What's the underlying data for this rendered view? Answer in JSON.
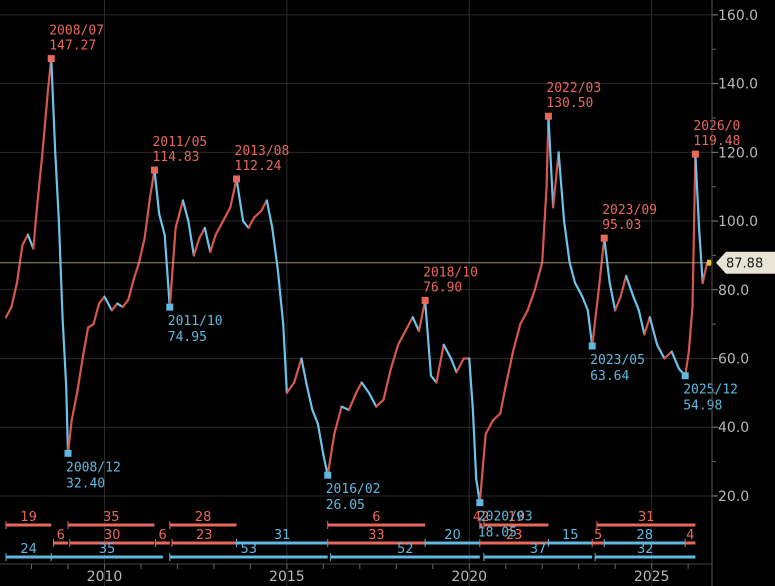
{
  "chart_data": {
    "type": "line",
    "ylim": [
      13,
      162
    ],
    "y_ticks": [
      "20.0",
      "40.0",
      "60.0",
      "80.0",
      "100.0",
      "120.0",
      "140.0",
      "160.0"
    ],
    "x_ticks": [
      {
        "label": "2010",
        "x": 2010.0
      },
      {
        "label": "2015",
        "x": 2015.0
      },
      {
        "label": "2020",
        "x": 2020.0
      },
      {
        "label": "2025",
        "x": 2025.0
      }
    ],
    "xlim": [
      2007.3,
      2026.6
    ],
    "series": [
      {
        "values": [
          {
            "x": 2007.3,
            "y": 72
          },
          {
            "x": 2007.45,
            "y": 75
          },
          {
            "x": 2007.6,
            "y": 82
          },
          {
            "x": 2007.75,
            "y": 93
          },
          {
            "x": 2007.9,
            "y": 96
          },
          {
            "x": 2008.05,
            "y": 92
          },
          {
            "x": 2008.15,
            "y": 104
          },
          {
            "x": 2008.3,
            "y": 120
          },
          {
            "x": 2008.45,
            "y": 138
          },
          {
            "x": 2008.54,
            "y": 147.27
          },
          {
            "x": 2008.65,
            "y": 120
          },
          {
            "x": 2008.75,
            "y": 100
          },
          {
            "x": 2008.85,
            "y": 72
          },
          {
            "x": 2008.95,
            "y": 52
          },
          {
            "x": 2009.0,
            "y": 32.4
          },
          {
            "x": 2009.1,
            "y": 42
          },
          {
            "x": 2009.25,
            "y": 50
          },
          {
            "x": 2009.4,
            "y": 60
          },
          {
            "x": 2009.55,
            "y": 69
          },
          {
            "x": 2009.7,
            "y": 70
          },
          {
            "x": 2009.85,
            "y": 76
          },
          {
            "x": 2010.0,
            "y": 78
          },
          {
            "x": 2010.2,
            "y": 74
          },
          {
            "x": 2010.35,
            "y": 76
          },
          {
            "x": 2010.5,
            "y": 75
          },
          {
            "x": 2010.65,
            "y": 77
          },
          {
            "x": 2010.8,
            "y": 83
          },
          {
            "x": 2010.95,
            "y": 88
          },
          {
            "x": 2011.1,
            "y": 95
          },
          {
            "x": 2011.25,
            "y": 107
          },
          {
            "x": 2011.37,
            "y": 114.83
          },
          {
            "x": 2011.5,
            "y": 102
          },
          {
            "x": 2011.65,
            "y": 96
          },
          {
            "x": 2011.79,
            "y": 74.95
          },
          {
            "x": 2011.95,
            "y": 98
          },
          {
            "x": 2012.15,
            "y": 106
          },
          {
            "x": 2012.3,
            "y": 100
          },
          {
            "x": 2012.45,
            "y": 90
          },
          {
            "x": 2012.6,
            "y": 95
          },
          {
            "x": 2012.75,
            "y": 98
          },
          {
            "x": 2012.9,
            "y": 91
          },
          {
            "x": 2013.05,
            "y": 96
          },
          {
            "x": 2013.25,
            "y": 100
          },
          {
            "x": 2013.45,
            "y": 104
          },
          {
            "x": 2013.62,
            "y": 112.24
          },
          {
            "x": 2013.8,
            "y": 100
          },
          {
            "x": 2013.95,
            "y": 98
          },
          {
            "x": 2014.1,
            "y": 101
          },
          {
            "x": 2014.3,
            "y": 103
          },
          {
            "x": 2014.45,
            "y": 106
          },
          {
            "x": 2014.6,
            "y": 98
          },
          {
            "x": 2014.75,
            "y": 86
          },
          {
            "x": 2014.9,
            "y": 70
          },
          {
            "x": 2015.0,
            "y": 50
          },
          {
            "x": 2015.2,
            "y": 53
          },
          {
            "x": 2015.4,
            "y": 60
          },
          {
            "x": 2015.55,
            "y": 52
          },
          {
            "x": 2015.7,
            "y": 45
          },
          {
            "x": 2015.85,
            "y": 41
          },
          {
            "x": 2016.0,
            "y": 32
          },
          {
            "x": 2016.12,
            "y": 26.05
          },
          {
            "x": 2016.3,
            "y": 38
          },
          {
            "x": 2016.5,
            "y": 46
          },
          {
            "x": 2016.7,
            "y": 45
          },
          {
            "x": 2016.9,
            "y": 50
          },
          {
            "x": 2017.05,
            "y": 53
          },
          {
            "x": 2017.25,
            "y": 50
          },
          {
            "x": 2017.45,
            "y": 46
          },
          {
            "x": 2017.65,
            "y": 48
          },
          {
            "x": 2017.85,
            "y": 57
          },
          {
            "x": 2018.05,
            "y": 64
          },
          {
            "x": 2018.25,
            "y": 68
          },
          {
            "x": 2018.45,
            "y": 72
          },
          {
            "x": 2018.62,
            "y": 68
          },
          {
            "x": 2018.79,
            "y": 76.9
          },
          {
            "x": 2018.95,
            "y": 55
          },
          {
            "x": 2019.1,
            "y": 53
          },
          {
            "x": 2019.3,
            "y": 64
          },
          {
            "x": 2019.5,
            "y": 60
          },
          {
            "x": 2019.65,
            "y": 56
          },
          {
            "x": 2019.85,
            "y": 60
          },
          {
            "x": 2020.0,
            "y": 60
          },
          {
            "x": 2020.1,
            "y": 45
          },
          {
            "x": 2020.19,
            "y": 25
          },
          {
            "x": 2020.29,
            "y": 18.05
          },
          {
            "x": 2020.45,
            "y": 38
          },
          {
            "x": 2020.65,
            "y": 42
          },
          {
            "x": 2020.85,
            "y": 44
          },
          {
            "x": 2021.0,
            "y": 52
          },
          {
            "x": 2021.2,
            "y": 62
          },
          {
            "x": 2021.4,
            "y": 70
          },
          {
            "x": 2021.6,
            "y": 74
          },
          {
            "x": 2021.8,
            "y": 80
          },
          {
            "x": 2022.0,
            "y": 88
          },
          {
            "x": 2022.12,
            "y": 110
          },
          {
            "x": 2022.17,
            "y": 130.5
          },
          {
            "x": 2022.3,
            "y": 104
          },
          {
            "x": 2022.45,
            "y": 120
          },
          {
            "x": 2022.6,
            "y": 100
          },
          {
            "x": 2022.75,
            "y": 88
          },
          {
            "x": 2022.9,
            "y": 82
          },
          {
            "x": 2023.1,
            "y": 78
          },
          {
            "x": 2023.25,
            "y": 74
          },
          {
            "x": 2023.37,
            "y": 63.64
          },
          {
            "x": 2023.55,
            "y": 80
          },
          {
            "x": 2023.7,
            "y": 95.03
          },
          {
            "x": 2023.85,
            "y": 82
          },
          {
            "x": 2024.0,
            "y": 74
          },
          {
            "x": 2024.15,
            "y": 78
          },
          {
            "x": 2024.3,
            "y": 84
          },
          {
            "x": 2024.5,
            "y": 78
          },
          {
            "x": 2024.65,
            "y": 74
          },
          {
            "x": 2024.8,
            "y": 67
          },
          {
            "x": 2024.95,
            "y": 72
          },
          {
            "x": 2025.15,
            "y": 64
          },
          {
            "x": 2025.35,
            "y": 60
          },
          {
            "x": 2025.55,
            "y": 62
          },
          {
            "x": 2025.75,
            "y": 57
          },
          {
            "x": 2025.92,
            "y": 54.98
          },
          {
            "x": 2026.02,
            "y": 62
          },
          {
            "x": 2026.12,
            "y": 75
          },
          {
            "x": 2026.2,
            "y": 119.48
          },
          {
            "x": 2026.3,
            "y": 98
          },
          {
            "x": 2026.4,
            "y": 82
          },
          {
            "x": 2026.52,
            "y": 87.88
          }
        ]
      }
    ],
    "last_value": {
      "label": "87.88",
      "y": 87.88
    },
    "annotations": [
      {
        "kind": "high",
        "date": "2008/07",
        "value": "147.27",
        "x": 2008.54,
        "y": 147.27
      },
      {
        "kind": "low",
        "date": "2008/12",
        "value": "32.40",
        "x": 2009.0,
        "y": 32.4
      },
      {
        "kind": "high",
        "date": "2011/05",
        "value": "114.83",
        "x": 2011.37,
        "y": 114.83
      },
      {
        "kind": "low",
        "date": "2011/10",
        "value": "74.95",
        "x": 2011.79,
        "y": 74.95
      },
      {
        "kind": "high",
        "date": "2013/08",
        "value": "112.24",
        "x": 2013.62,
        "y": 112.24
      },
      {
        "kind": "low",
        "date": "2016/02",
        "value": "26.05",
        "x": 2016.12,
        "y": 26.05
      },
      {
        "kind": "high",
        "date": "2018/10",
        "value": "76.90",
        "x": 2018.79,
        "y": 76.9
      },
      {
        "kind": "low",
        "date": "2020/03",
        "value": "18.05",
        "x": 2020.29,
        "y": 18.05
      },
      {
        "kind": "high",
        "date": "2022/03",
        "value": "130.50",
        "x": 2022.17,
        "y": 130.5
      },
      {
        "kind": "low",
        "date": "2023/05",
        "value": "63.64",
        "x": 2023.37,
        "y": 63.64
      },
      {
        "kind": "high",
        "date": "2023/09",
        "value": "95.03",
        "x": 2023.7,
        "y": 95.03
      },
      {
        "kind": "low",
        "date": "2025/12",
        "value": "54.98",
        "x": 2025.92,
        "y": 54.98
      },
      {
        "kind": "high",
        "date": "2026/0",
        "value": "119.48",
        "x": 2026.2,
        "y": 119.48
      }
    ],
    "segments": [
      {
        "row": 1,
        "dir": "up",
        "label": "19",
        "x0": 2007.3,
        "x1": 2008.54
      },
      {
        "row": 1,
        "dir": "up",
        "label": "35",
        "x0": 2009.0,
        "x1": 2011.37
      },
      {
        "row": 1,
        "dir": "up",
        "label": "28",
        "x0": 2011.79,
        "x1": 2013.62
      },
      {
        "row": 1,
        "dir": "up",
        "label": "6",
        "x0": 2016.12,
        "x1": 2018.79
      },
      {
        "row": 1,
        "dir": "up",
        "label": "42",
        "x0": 2020.29,
        "x1": 2020.36
      },
      {
        "row": 1,
        "dir": "up",
        "label": "19",
        "x0": 2020.4,
        "x1": 2022.17
      },
      {
        "row": 1,
        "dir": "up",
        "label": "31",
        "x0": 2023.5,
        "x1": 2026.2
      },
      {
        "row": 2,
        "dir": "up",
        "label": "6",
        "x0": 2008.6,
        "x1": 2009.0
      },
      {
        "row": 2,
        "dir": "up",
        "label": "30",
        "x0": 2009.05,
        "x1": 2011.37
      },
      {
        "row": 2,
        "dir": "up",
        "label": "6",
        "x0": 2011.4,
        "x1": 2011.79
      },
      {
        "row": 2,
        "dir": "up",
        "label": "23",
        "x0": 2011.85,
        "x1": 2013.62
      },
      {
        "row": 2,
        "dir": "dn",
        "label": "31",
        "x0": 2013.62,
        "x1": 2016.12
      },
      {
        "row": 2,
        "dir": "up",
        "label": "33",
        "x0": 2016.12,
        "x1": 2018.79
      },
      {
        "row": 2,
        "dir": "dn",
        "label": "20",
        "x0": 2018.79,
        "x1": 2020.29
      },
      {
        "row": 2,
        "dir": "up",
        "label": "23",
        "x0": 2020.29,
        "x1": 2022.17
      },
      {
        "row": 2,
        "dir": "dn",
        "label": "15",
        "x0": 2022.17,
        "x1": 2023.37
      },
      {
        "row": 2,
        "dir": "up",
        "label": "5",
        "x0": 2023.37,
        "x1": 2023.7
      },
      {
        "row": 2,
        "dir": "dn",
        "label": "28",
        "x0": 2023.7,
        "x1": 2025.92
      },
      {
        "row": 2,
        "dir": "up",
        "label": "4",
        "x0": 2025.92,
        "x1": 2026.2
      },
      {
        "row": 3,
        "dir": "dn",
        "label": "24",
        "x0": 2007.3,
        "x1": 2008.54
      },
      {
        "row": 3,
        "dir": "dn",
        "label": "35",
        "x0": 2008.54,
        "x1": 2011.6
      },
      {
        "row": 3,
        "dir": "dn",
        "label": "53",
        "x0": 2011.79,
        "x1": 2016.12
      },
      {
        "row": 3,
        "dir": "dn",
        "label": "52",
        "x0": 2016.2,
        "x1": 2020.29
      },
      {
        "row": 3,
        "dir": "dn",
        "label": "37",
        "x0": 2020.4,
        "x1": 2023.37
      },
      {
        "row": 3,
        "dir": "dn",
        "label": "32",
        "x0": 2023.45,
        "x1": 2026.2
      }
    ]
  }
}
